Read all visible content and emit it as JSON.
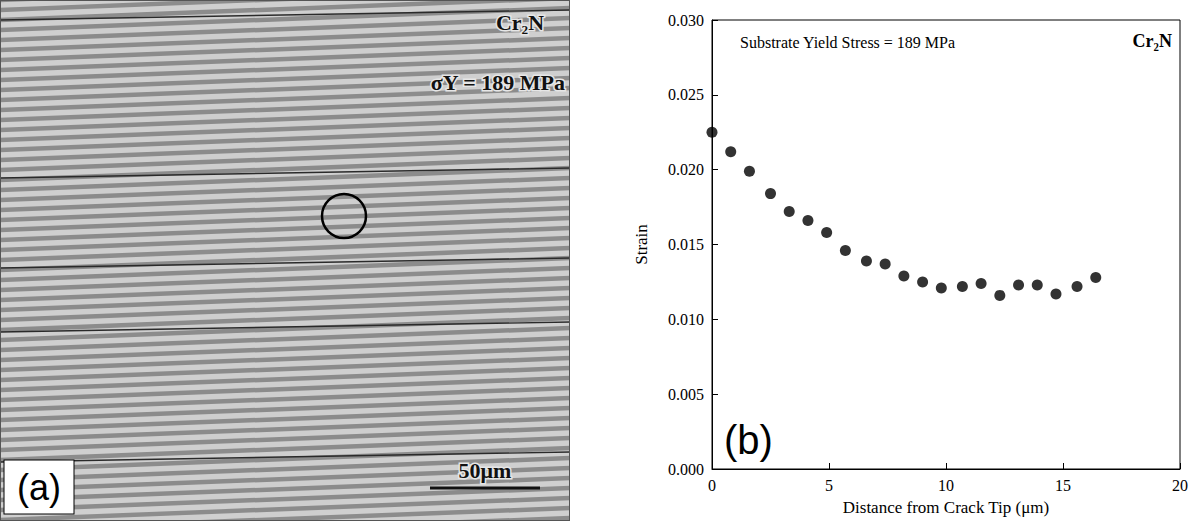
{
  "micrograph": {
    "material": "Cr₂N",
    "yield_label": "σY = 189 MPa",
    "scale_bar": "50μm",
    "letter": "(a)"
  },
  "chart_data": {
    "type": "scatter",
    "annotations": [
      "Substrate Yield Stress = 189 MPa",
      "Cr₂N",
      "(b)"
    ],
    "x_label": "Distance from Crack Tip (μm)",
    "y_label": "Strain",
    "x": [
      0,
      0.8,
      1.6,
      2.5,
      3.3,
      4.1,
      4.9,
      5.7,
      6.6,
      7.4,
      8.2,
      9.0,
      9.8,
      10.7,
      11.5,
      12.3,
      13.1,
      13.9,
      14.7,
      15.6,
      16.4
    ],
    "values": [
      0.0225,
      0.0212,
      0.0199,
      0.0184,
      0.0172,
      0.0166,
      0.0158,
      0.0146,
      0.0139,
      0.0137,
      0.0129,
      0.0125,
      0.0121,
      0.0122,
      0.0124,
      0.0116,
      0.0123,
      0.0123,
      0.0117,
      0.0122,
      0.0128
    ],
    "color": "#000000",
    "marker": "circle",
    "xlim": [
      0,
      20
    ],
    "xticks": [
      0,
      5,
      10,
      15,
      20
    ],
    "ylim": [
      0,
      0.03
    ],
    "yticks": [
      {
        "value": 0,
        "label": "0.000"
      },
      {
        "value": 0.005,
        "label": "0.005"
      },
      {
        "value": 0.01,
        "label": "0.010"
      },
      {
        "value": 0.015,
        "label": "0.015"
      },
      {
        "value": 0.02,
        "label": "0.020"
      },
      {
        "value": 0.025,
        "label": "0.025"
      },
      {
        "value": 0.03,
        "label": "0.030"
      }
    ],
    "grid": false
  }
}
